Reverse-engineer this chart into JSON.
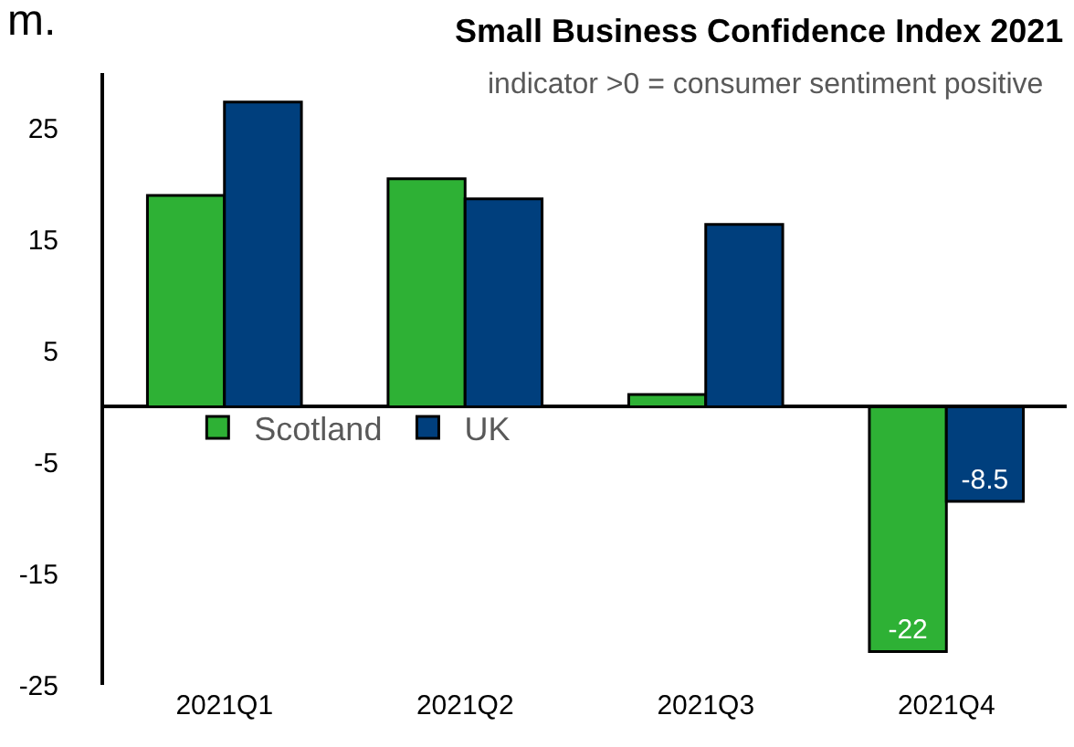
{
  "chart_data": {
    "type": "bar",
    "title": "Small Business Confidence Index 2021",
    "subtitle": "indicator >0 = consumer sentiment positive",
    "annotations": [
      "m."
    ],
    "categories": [
      "2021Q1",
      "2021Q2",
      "2021Q3",
      "2021Q4"
    ],
    "series": [
      {
        "name": "Scotland",
        "color": "#2eb135",
        "values": [
          19,
          20.5,
          1.1,
          -22
        ],
        "value_labels": [
          null,
          null,
          null,
          "-22"
        ]
      },
      {
        "name": "UK",
        "color": "#003f7d",
        "values": [
          27.4,
          18.7,
          16.4,
          -8.5
        ],
        "value_labels": [
          null,
          null,
          null,
          "-8.5"
        ]
      }
    ],
    "ylim": [
      -25,
      30
    ],
    "yticks": [
      -25,
      -15,
      -5,
      5,
      15,
      25
    ],
    "legend": "left"
  }
}
